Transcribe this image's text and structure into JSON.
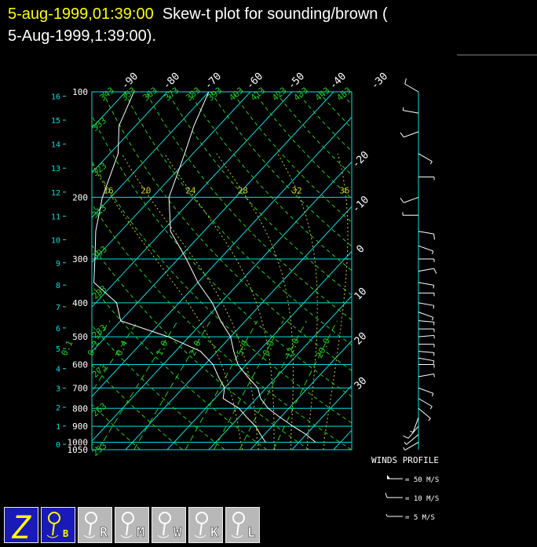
{
  "chart_data": {
    "type": "skewt",
    "title_date": "5-aug-1999,01:39:00",
    "title": "Skew-t plot for sounding/brown (",
    "subtitle": "5-Aug-1999,1:39:00).",
    "ylim": [
      100,
      1050
    ],
    "yticks": [
      100,
      200,
      300,
      400,
      500,
      600,
      700,
      800,
      900,
      1000,
      1050
    ],
    "height_ticks": [
      0,
      1,
      2,
      3,
      4,
      5,
      6,
      7,
      8,
      9,
      10,
      11,
      12,
      13,
      14,
      15,
      16
    ],
    "top_temp_ticks": [
      -90,
      -80,
      -70,
      -60,
      -50,
      -40,
      -30
    ],
    "right_temp_ticks": [
      -20,
      -10,
      0,
      10,
      20,
      30
    ],
    "dry_adiabats": [
      243,
      253,
      263,
      273,
      283,
      293,
      303,
      313,
      323,
      333,
      343,
      353,
      363,
      373,
      383,
      393,
      403,
      413,
      423,
      433,
      443,
      453
    ],
    "mixing_ratios": [
      {
        "value": 0.1,
        "label": "0.1"
      },
      {
        "value": 0.2,
        "label": "0.2"
      },
      {
        "value": 0.4,
        "label": "0.4"
      },
      {
        "value": 1,
        "label": "1.0"
      },
      {
        "value": 2,
        "label": "2.0"
      },
      {
        "value": 5,
        "label": "5.0"
      },
      {
        "value": 8,
        "label": "8.0"
      },
      {
        "value": 12,
        "label": "12.0"
      },
      {
        "value": 20,
        "label": "20.0"
      }
    ],
    "moist_adiabats": [
      16,
      20,
      24,
      28,
      32,
      36
    ],
    "x": [
      1000,
      950,
      900,
      850,
      800,
      750,
      700,
      650,
      600,
      550,
      500,
      450,
      400,
      350,
      300,
      250,
      200,
      150,
      125,
      100
    ],
    "series": [
      {
        "name": "temperature",
        "color": "#ffffff",
        "values": [
          34,
          30,
          25,
          20,
          15,
          11,
          8,
          3,
          -2,
          -6,
          -10,
          -16,
          -22,
          -30,
          -38,
          -48,
          -56,
          -62,
          -66,
          -70
        ]
      },
      {
        "name": "dewpoint",
        "color": "#ffffff",
        "values": [
          22,
          19,
          16,
          12,
          8,
          2,
          0,
          -4,
          -8,
          -14,
          -25,
          -40,
          -45,
          -55,
          -60,
          -66,
          -72,
          -78,
          -84,
          -88
        ]
      }
    ],
    "winds": {
      "pressure": [
        100,
        115,
        130,
        150,
        175,
        200,
        225,
        250,
        275,
        300,
        325,
        350,
        375,
        400,
        425,
        450,
        475,
        500,
        525,
        550,
        575,
        600,
        650,
        700,
        750,
        800,
        850,
        900,
        950,
        1000
      ],
      "speed": [
        10,
        8,
        12,
        9,
        7,
        12,
        8,
        10,
        9,
        8,
        10,
        8,
        9,
        7,
        8,
        6,
        7,
        8,
        7,
        6,
        7,
        6,
        5,
        6,
        7,
        8,
        6,
        10,
        9,
        7
      ],
      "direction": [
        300,
        280,
        250,
        120,
        90,
        250,
        270,
        100,
        110,
        90,
        80,
        100,
        90,
        100,
        110,
        95,
        90,
        85,
        90,
        95,
        100,
        90,
        80,
        110,
        120,
        130,
        200,
        220,
        230,
        240
      ]
    },
    "winds_title": "WINDS PROFILE",
    "winds_legend": [
      "= 50 M/S",
      "= 10 M/S",
      "= 5 M/S"
    ]
  },
  "toolbar": {
    "buttons": [
      "Z",
      "B",
      "R",
      "M",
      "W",
      "K",
      "L"
    ]
  }
}
